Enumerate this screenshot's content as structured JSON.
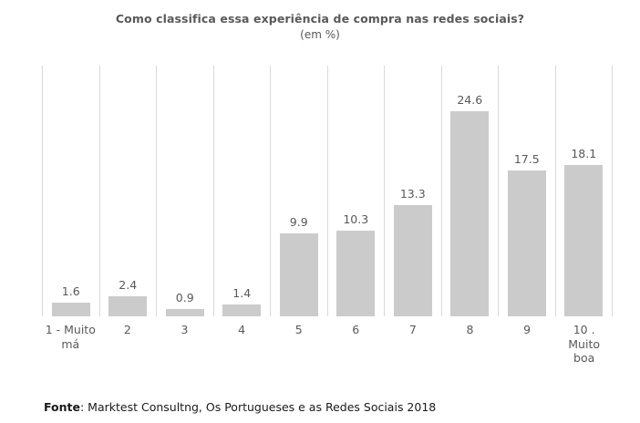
{
  "title": "Como classifica essa experiência de compra nas redes sociais?",
  "subtitle": "(em %)",
  "footer": {
    "label": "Fonte",
    "text": ": Marktest Consultng, Os Portugueses e as Redes Sociais 2018"
  },
  "colors": {
    "bar": "#cbcbcb",
    "gridline": "#d9d9d9",
    "label_text": "#595959",
    "footer_text": "#1a1a1a"
  },
  "chart_data": {
    "type": "bar",
    "title": "Como classifica essa experiência de compra nas redes sociais?",
    "subtitle": "(em %)",
    "categories": [
      "1 - Muito má",
      "2",
      "3",
      "4",
      "5",
      "6",
      "7",
      "8",
      "9",
      "10 . Muito boa"
    ],
    "category_lines": [
      [
        "1 - Muito",
        "má"
      ],
      [
        "2"
      ],
      [
        "3"
      ],
      [
        "4"
      ],
      [
        "5"
      ],
      [
        "6"
      ],
      [
        "7"
      ],
      [
        "8"
      ],
      [
        "9"
      ],
      [
        "10 .",
        "Muito",
        "boa"
      ]
    ],
    "values": [
      1.6,
      2.4,
      0.9,
      1.4,
      9.9,
      10.3,
      13.3,
      24.6,
      17.5,
      18.1
    ],
    "value_labels": [
      "1.6",
      "2.4",
      "0.9",
      "1.4",
      "9.9",
      "10.3",
      "13.3",
      "24.6",
      "17.5",
      "18.1"
    ],
    "xlabel": "",
    "ylabel": "",
    "ylim": [
      0,
      30
    ],
    "grid": "vertical-category-separators",
    "legend": "none",
    "bar_color": "#cbcbcb"
  }
}
